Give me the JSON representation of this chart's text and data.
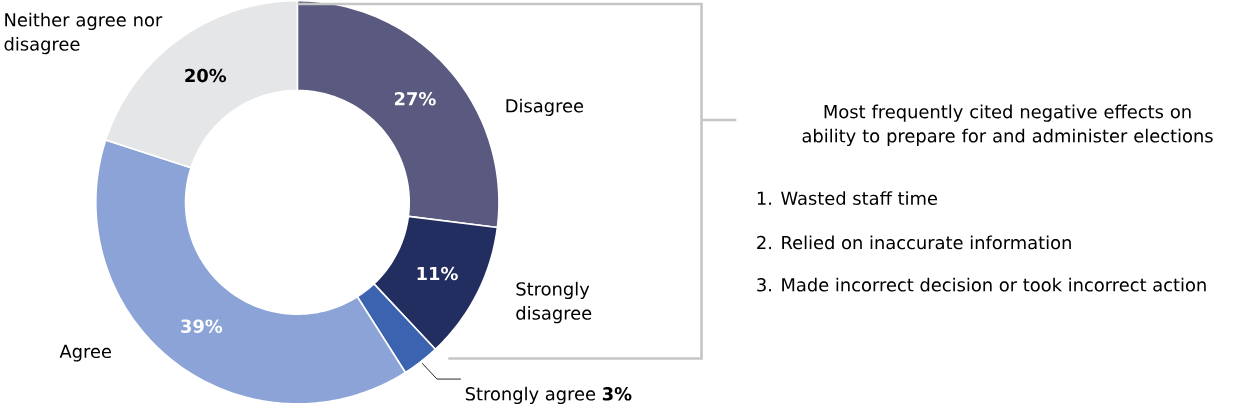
{
  "chart_data": {
    "type": "donut",
    "categories": [
      "Disagree",
      "Strongly disagree",
      "Strongly agree",
      "Agree",
      "Neither agree nor disagree"
    ],
    "values": [
      27,
      11,
      3,
      39,
      20
    ],
    "colors": [
      "#5a597f",
      "#222d60",
      "#3c63b0",
      "#8ba3d6",
      "#e5e6e8"
    ],
    "value_labels": [
      "27%",
      "11%",
      "3%",
      "39%",
      "20%"
    ],
    "annotations": [
      "Most frequently cited negative effects on ability to prepare for and administer elections",
      "1. Wasted staff time",
      "2. Relied on inaccurate information",
      "3. Made incorrect decision or took incorrect action"
    ]
  }
}
